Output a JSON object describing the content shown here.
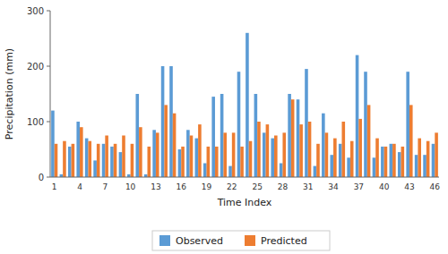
{
  "chart_data": {
    "type": "bar",
    "categories": [
      "1",
      null,
      null,
      "4",
      null,
      null,
      "7",
      null,
      null,
      "10",
      null,
      null,
      "13",
      null,
      null,
      "16",
      null,
      null,
      "19",
      null,
      null,
      "22",
      null,
      null,
      "25",
      null,
      null,
      "28",
      null,
      null,
      "31",
      null,
      null,
      "34",
      null,
      null,
      "37",
      null,
      null,
      "40",
      null,
      null,
      "43",
      null,
      null,
      "46"
    ],
    "series": [
      {
        "name": "Observed",
        "color": "#5B9BD5",
        "values": [
          120,
          5,
          55,
          100,
          70,
          30,
          60,
          55,
          45,
          5,
          150,
          5,
          85,
          200,
          200,
          50,
          85,
          70,
          25,
          145,
          150,
          20,
          190,
          260,
          150,
          80,
          70,
          25,
          150,
          140,
          195,
          20,
          115,
          40,
          60,
          35,
          220,
          190,
          35,
          55,
          60,
          45,
          190,
          40,
          40,
          60
        ]
      },
      {
        "name": "Predicted",
        "color": "#ED7D31",
        "values": [
          60,
          65,
          60,
          90,
          65,
          60,
          75,
          60,
          75,
          60,
          90,
          55,
          80,
          130,
          115,
          55,
          75,
          95,
          55,
          55,
          80,
          80,
          55,
          65,
          100,
          95,
          75,
          80,
          140,
          95,
          100,
          60,
          80,
          70,
          100,
          65,
          105,
          130,
          70,
          55,
          60,
          55,
          130,
          70,
          65,
          80
        ]
      }
    ],
    "xlabel": "Time Index",
    "ylabel": "Precipitation (mm)",
    "ylim": [
      0,
      300
    ],
    "yticks": [
      0,
      100,
      200,
      300
    ],
    "grid": false,
    "legend": "bottom"
  }
}
